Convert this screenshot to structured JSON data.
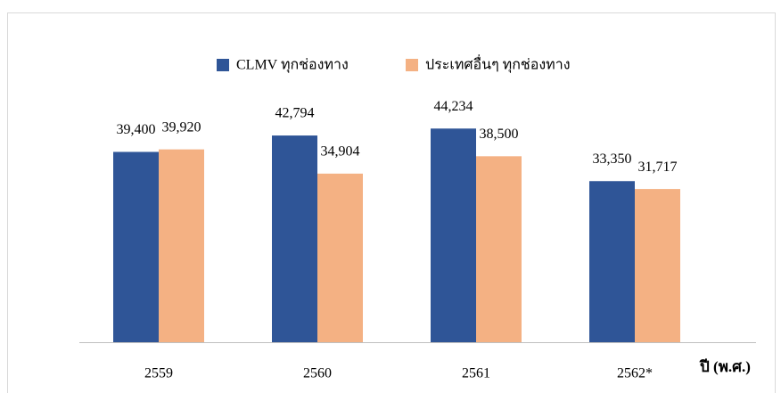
{
  "chart_data": {
    "type": "bar",
    "categories": [
      "2559",
      "2560",
      "2561",
      "2562*"
    ],
    "x_label": "ปี (พ.ศ.)",
    "series": [
      {
        "name": "CLMV ทุกช่องทาง",
        "color": "#2f5597",
        "values": [
          39400,
          42794,
          44234,
          33350
        ],
        "value_labels": [
          "39,400",
          "42,794",
          "44,234",
          "33,350"
        ]
      },
      {
        "name": "ประเทศอื่นๆ ทุกช่องทาง",
        "color": "#f4b183",
        "values": [
          39920,
          34904,
          38500,
          31717
        ],
        "value_labels": [
          "39,920",
          "34,904",
          "38,500",
          "31,717"
        ]
      }
    ],
    "ylim": [
      0,
      50000
    ]
  }
}
